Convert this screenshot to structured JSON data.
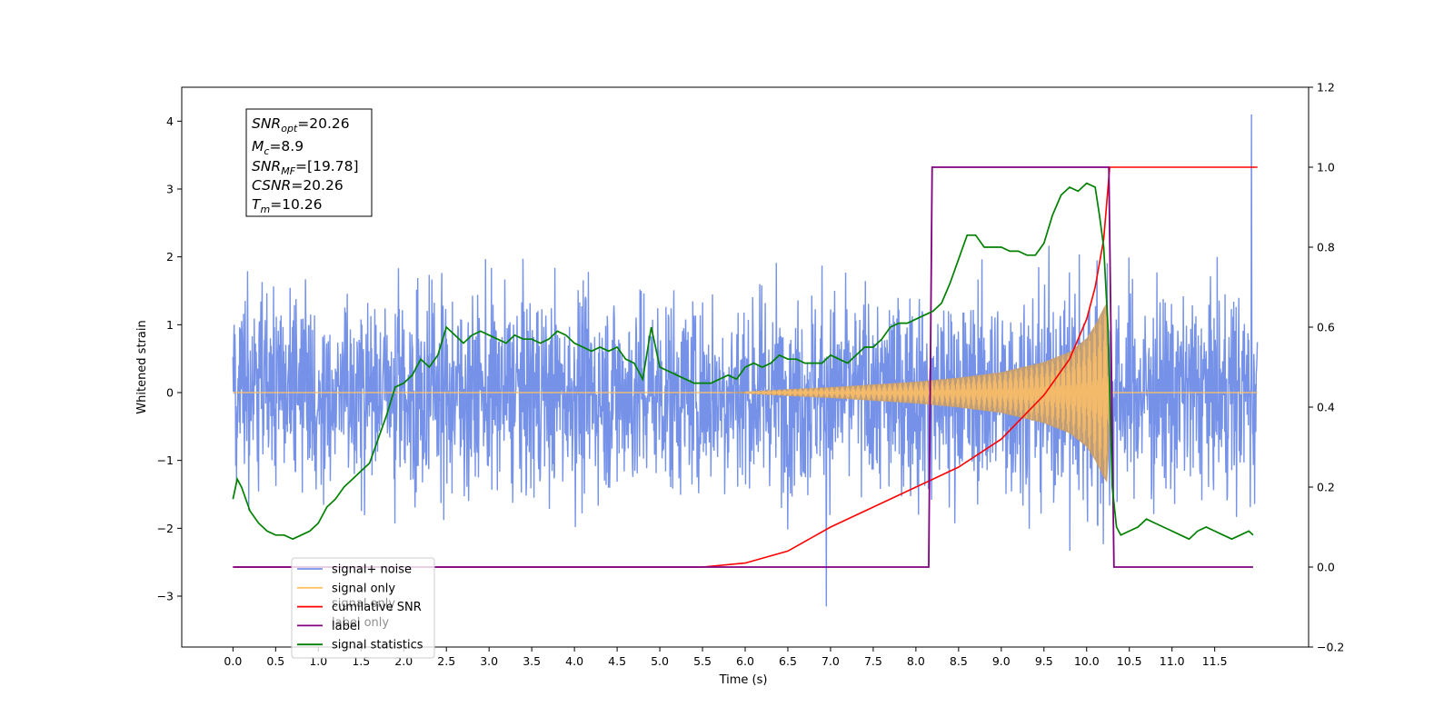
{
  "chart_data": {
    "type": "line",
    "xlabel": "Time (s)",
    "ylabel_left": "Whitened strain",
    "xlim": [
      -0.6,
      12.6
    ],
    "ylim_left": [
      -3.75,
      4.5
    ],
    "ylim_right": [
      -0.2,
      1.2
    ],
    "x_ticks": [
      0.0,
      0.5,
      1.0,
      1.5,
      2.0,
      2.5,
      3.0,
      3.5,
      4.0,
      4.5,
      5.0,
      5.5,
      6.0,
      6.5,
      7.0,
      7.5,
      8.0,
      8.5,
      9.0,
      9.5,
      10.0,
      10.5,
      11.0,
      11.5
    ],
    "x_tick_labels": [
      "0.0",
      "0.5",
      "1.0",
      "1.5",
      "2.0",
      "2.5",
      "3.0",
      "3.5",
      "4.0",
      "4.5",
      "5.0",
      "5.5",
      "6.0",
      "6.5",
      "7.0",
      "7.5",
      "8.0",
      "8.5",
      "9.0",
      "9.5",
      "10.0",
      "10.5",
      "11.0",
      "11.5"
    ],
    "y_left_ticks": [
      -3,
      -2,
      -1,
      0,
      1,
      2,
      3,
      4
    ],
    "y_left_tick_labels": [
      "−3",
      "−2",
      "−1",
      "0",
      "1",
      "2",
      "3",
      "4"
    ],
    "y_right_ticks": [
      -0.2,
      0.0,
      0.2,
      0.4,
      0.6,
      0.8,
      1.0,
      1.2
    ],
    "y_right_tick_labels": [
      "−0.2",
      "0.0",
      "0.2",
      "0.4",
      "0.6",
      "0.8",
      "1.0",
      "1.2"
    ],
    "annotation": [
      {
        "base": "SNR",
        "sub": "opt",
        "value": "=20.26"
      },
      {
        "base": "M",
        "sub": "c",
        "value": "=8.9"
      },
      {
        "base": "SNR",
        "sub": "MF",
        "value": "=[19.78]"
      },
      {
        "base": "CSNR",
        "sub": "",
        "value": "=20.26"
      },
      {
        "base": "T",
        "sub": "m",
        "value": "=10.26"
      }
    ],
    "legend": [
      "signal+ noise",
      "signal only",
      "cumilative SNR",
      "label",
      "signal statistics"
    ],
    "legend_ghost": [
      "signal only",
      "label only"
    ],
    "legend_location": "lower-left",
    "colors": {
      "noise": "#7592e8",
      "signal": "#ffc266",
      "signal_fill": "#c39d72",
      "csnr": "#ff0000",
      "label": "#800080",
      "stats": "#008000"
    },
    "series": [
      {
        "name": "signal+ noise",
        "axis": "left",
        "x_range": [
          0.0,
          12.0
        ],
        "envelope_upper": 2.5,
        "envelope_lower": -2.0,
        "max_peak": 4.1,
        "min_peak": -3.15
      },
      {
        "name": "signal only",
        "axis": "left",
        "x": [
          0.0,
          5.8,
          6.5,
          7.0,
          7.5,
          8.0,
          8.5,
          9.0,
          9.5,
          9.8,
          10.0,
          10.1,
          10.2,
          10.25,
          10.28,
          10.5,
          12.0
        ],
        "amplitude": [
          0,
          0,
          0.05,
          0.08,
          0.12,
          0.16,
          0.22,
          0.3,
          0.45,
          0.6,
          0.8,
          1.0,
          1.25,
          1.35,
          0.0,
          0.0,
          0.0
        ]
      },
      {
        "name": "cumilative SNR",
        "axis": "right",
        "x": [
          0.0,
          5.5,
          6.0,
          6.5,
          7.0,
          7.5,
          8.0,
          8.5,
          9.0,
          9.5,
          9.8,
          10.0,
          10.1,
          10.2,
          10.27,
          12.0
        ],
        "y": [
          0.0,
          0.0,
          0.01,
          0.04,
          0.1,
          0.15,
          0.2,
          0.25,
          0.32,
          0.43,
          0.52,
          0.62,
          0.7,
          0.82,
          1.0,
          1.0
        ]
      },
      {
        "name": "label",
        "axis": "right",
        "x": [
          0.0,
          8.15,
          8.19,
          10.26,
          10.32,
          11.95
        ],
        "y": [
          0.0,
          0.0,
          1.0,
          1.0,
          0.0,
          0.0
        ]
      },
      {
        "name": "signal statistics",
        "axis": "right",
        "x": [
          0.0,
          0.05,
          0.1,
          0.2,
          0.3,
          0.4,
          0.5,
          0.6,
          0.7,
          0.8,
          0.9,
          1.0,
          1.1,
          1.2,
          1.3,
          1.4,
          1.5,
          1.6,
          1.7,
          1.8,
          1.9,
          2.0,
          2.1,
          2.2,
          2.3,
          2.4,
          2.5,
          2.6,
          2.7,
          2.8,
          2.9,
          3.0,
          3.1,
          3.2,
          3.3,
          3.4,
          3.5,
          3.6,
          3.7,
          3.8,
          3.9,
          4.0,
          4.1,
          4.2,
          4.3,
          4.4,
          4.5,
          4.6,
          4.7,
          4.8,
          4.9,
          5.0,
          5.1,
          5.2,
          5.3,
          5.4,
          5.5,
          5.6,
          5.7,
          5.8,
          5.9,
          6.0,
          6.1,
          6.2,
          6.3,
          6.4,
          6.5,
          6.6,
          6.7,
          6.8,
          6.9,
          7.0,
          7.1,
          7.2,
          7.3,
          7.4,
          7.5,
          7.6,
          7.7,
          7.8,
          7.9,
          8.0,
          8.1,
          8.2,
          8.3,
          8.4,
          8.5,
          8.6,
          8.7,
          8.8,
          8.9,
          9.0,
          9.1,
          9.2,
          9.3,
          9.4,
          9.5,
          9.6,
          9.7,
          9.8,
          9.9,
          10.0,
          10.1,
          10.15,
          10.2,
          10.25,
          10.3,
          10.35,
          10.4,
          10.5,
          10.6,
          10.7,
          10.8,
          10.9,
          11.0,
          11.1,
          11.2,
          11.3,
          11.4,
          11.5,
          11.6,
          11.7,
          11.8,
          11.9,
          11.95
        ],
        "y": [
          0.17,
          0.22,
          0.2,
          0.14,
          0.11,
          0.09,
          0.08,
          0.08,
          0.07,
          0.08,
          0.09,
          0.11,
          0.15,
          0.17,
          0.2,
          0.22,
          0.24,
          0.26,
          0.32,
          0.38,
          0.45,
          0.46,
          0.48,
          0.52,
          0.5,
          0.53,
          0.6,
          0.58,
          0.56,
          0.58,
          0.59,
          0.58,
          0.57,
          0.56,
          0.58,
          0.57,
          0.57,
          0.56,
          0.57,
          0.59,
          0.58,
          0.56,
          0.55,
          0.54,
          0.55,
          0.54,
          0.55,
          0.52,
          0.51,
          0.47,
          0.6,
          0.5,
          0.49,
          0.48,
          0.47,
          0.46,
          0.46,
          0.46,
          0.47,
          0.48,
          0.47,
          0.5,
          0.51,
          0.5,
          0.51,
          0.53,
          0.52,
          0.52,
          0.51,
          0.51,
          0.51,
          0.53,
          0.52,
          0.51,
          0.53,
          0.55,
          0.55,
          0.57,
          0.6,
          0.61,
          0.61,
          0.62,
          0.63,
          0.64,
          0.66,
          0.71,
          0.77,
          0.83,
          0.83,
          0.8,
          0.8,
          0.8,
          0.79,
          0.79,
          0.78,
          0.78,
          0.81,
          0.88,
          0.93,
          0.95,
          0.94,
          0.96,
          0.95,
          0.88,
          0.8,
          0.6,
          0.2,
          0.1,
          0.08,
          0.09,
          0.1,
          0.12,
          0.11,
          0.1,
          0.09,
          0.08,
          0.07,
          0.09,
          0.1,
          0.09,
          0.08,
          0.07,
          0.08,
          0.09,
          0.08
        ]
      }
    ]
  }
}
